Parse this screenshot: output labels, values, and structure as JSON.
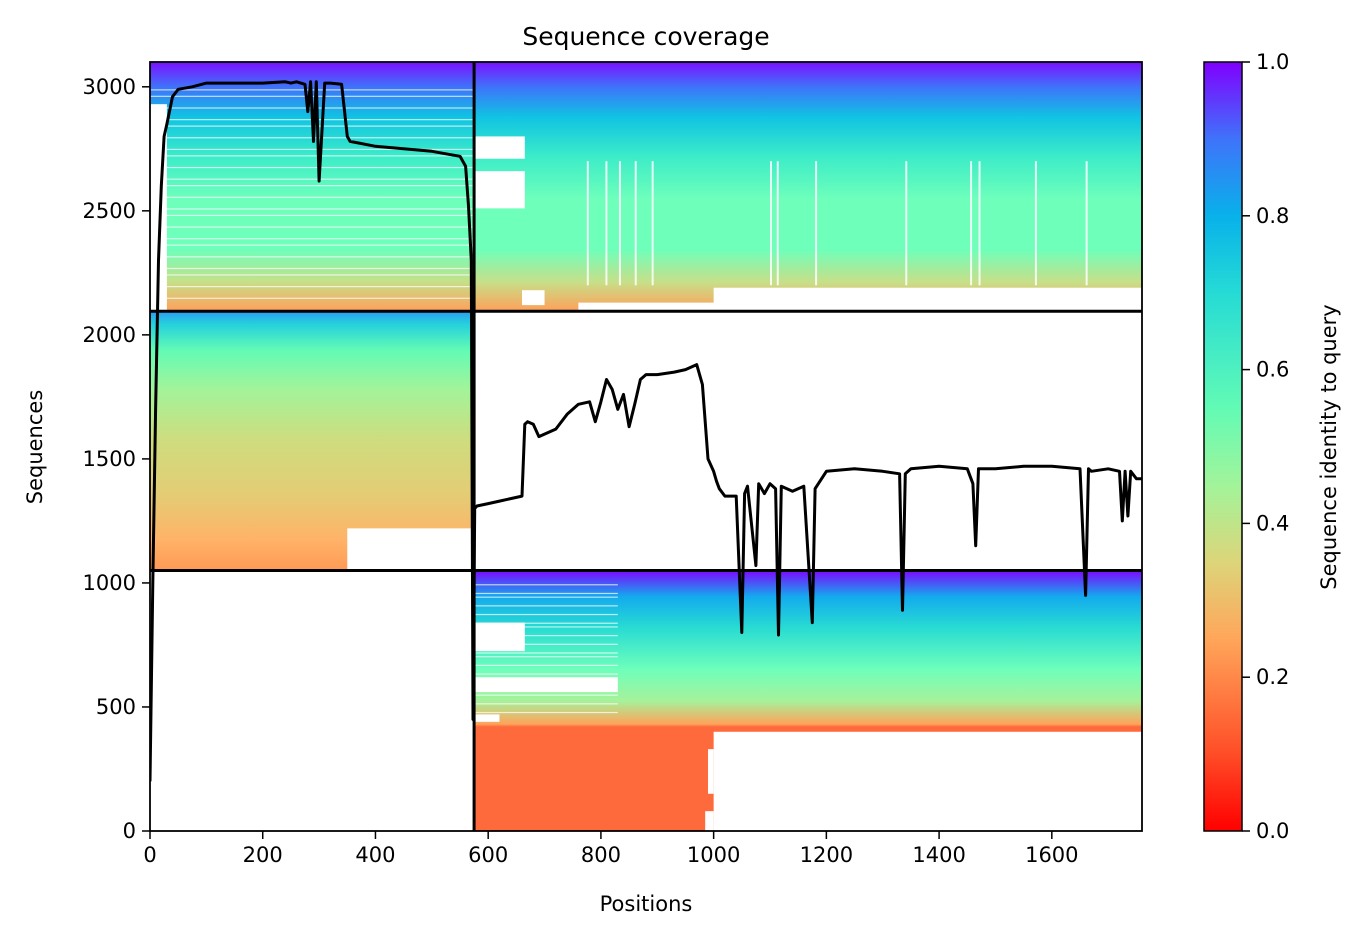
{
  "chart_data": {
    "type": "heatmap",
    "title": "Sequence coverage",
    "xlabel": "Positions",
    "ylabel": "Sequences",
    "colorbar_label": "Sequence identity to query",
    "colormap": "rainbow",
    "xlim": [
      0,
      1760
    ],
    "ylim": [
      0,
      3100
    ],
    "x_ticks": [
      0,
      200,
      400,
      600,
      800,
      1000,
      1200,
      1400,
      1600
    ],
    "x_tick_labels": [
      "0",
      "200",
      "400",
      "600",
      "800",
      "1000",
      "1200",
      "1400",
      "1600"
    ],
    "y_ticks": [
      0,
      500,
      1000,
      1500,
      2000,
      2500,
      3000
    ],
    "y_tick_labels": [
      "0",
      "500",
      "1000",
      "1500",
      "2000",
      "2500",
      "3000"
    ],
    "colorbar_range": [
      0,
      1
    ],
    "colorbar_ticks": [
      0.0,
      0.2,
      0.4,
      0.6,
      0.8,
      1.0
    ],
    "colorbar_tick_labels": [
      "0.0",
      "0.2",
      "0.4",
      "0.6",
      "0.8",
      "1.0"
    ],
    "chain_boundary_x": 575,
    "block_boundaries_y": [
      1050,
      2095
    ],
    "sequence_blocks": [
      {
        "y_range": [
          2095,
          3100
        ],
        "x_extents": [
          [
            0,
            575
          ],
          [
            575,
            1760
          ]
        ],
        "identity_range": [
          0.2,
          1.0
        ]
      },
      {
        "y_range": [
          1050,
          2095
        ],
        "x_extents": [
          [
            0,
            575
          ]
        ],
        "identity_range": [
          0.2,
          0.85
        ]
      },
      {
        "y_range": [
          0,
          1050
        ],
        "x_extents": [
          [
            575,
            1760
          ]
        ],
        "identity_range": [
          0.15,
          1.0
        ]
      }
    ],
    "coverage_line": {
      "x": [
        0,
        5,
        10,
        15,
        20,
        25,
        30,
        40,
        50,
        75,
        100,
        150,
        200,
        240,
        250,
        260,
        275,
        280,
        285,
        290,
        295,
        300,
        310,
        320,
        340,
        350,
        355,
        400,
        450,
        500,
        550,
        560,
        565,
        570,
        573,
        576,
        580,
        600,
        620,
        640,
        660,
        665,
        670,
        680,
        690,
        700,
        720,
        740,
        760,
        780,
        790,
        800,
        810,
        820,
        830,
        840,
        850,
        860,
        870,
        880,
        900,
        930,
        950,
        970,
        980,
        990,
        1000,
        1005,
        1010,
        1020,
        1040,
        1050,
        1055,
        1060,
        1075,
        1080,
        1090,
        1100,
        1110,
        1115,
        1120,
        1140,
        1160,
        1175,
        1180,
        1200,
        1250,
        1300,
        1330,
        1335,
        1340,
        1350,
        1400,
        1450,
        1460,
        1465,
        1470,
        1500,
        1550,
        1600,
        1650,
        1660,
        1665,
        1670,
        1700,
        1720,
        1725,
        1730,
        1735,
        1740,
        1750,
        1760
      ],
      "y": [
        200,
        1000,
        1700,
        2300,
        2600,
        2800,
        2850,
        2960,
        2990,
        3000,
        3015,
        3015,
        3015,
        3020,
        3015,
        3020,
        3010,
        2900,
        3020,
        2780,
        3020,
        2620,
        3015,
        3015,
        3010,
        2800,
        2780,
        2760,
        2750,
        2740,
        2720,
        2680,
        2520,
        2300,
        450,
        1300,
        1310,
        1320,
        1330,
        1340,
        1350,
        1640,
        1650,
        1640,
        1590,
        1600,
        1620,
        1680,
        1720,
        1730,
        1650,
        1730,
        1820,
        1780,
        1700,
        1760,
        1630,
        1720,
        1820,
        1840,
        1840,
        1850,
        1860,
        1880,
        1800,
        1500,
        1450,
        1410,
        1380,
        1350,
        1350,
        800,
        1360,
        1390,
        1070,
        1400,
        1360,
        1400,
        1380,
        790,
        1390,
        1370,
        1390,
        840,
        1380,
        1450,
        1460,
        1450,
        1440,
        890,
        1440,
        1460,
        1470,
        1460,
        1400,
        1150,
        1460,
        1460,
        1470,
        1470,
        1460,
        950,
        1460,
        1450,
        1460,
        1450,
        1250,
        1450,
        1270,
        1450,
        1420,
        1420
      ]
    }
  }
}
